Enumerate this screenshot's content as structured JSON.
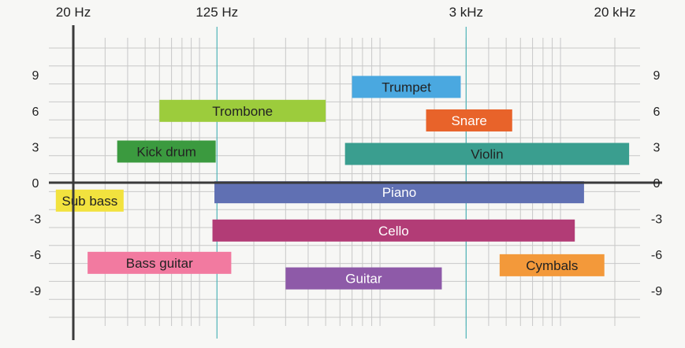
{
  "chart_data": {
    "type": "bar",
    "orientation": "horizontal-range",
    "x_scale": "log",
    "x_ticks": [
      {
        "value": 20,
        "label": "20 Hz"
      },
      {
        "value": 125,
        "label": "125 Hz"
      },
      {
        "value": 3000,
        "label": "3 kHz"
      },
      {
        "value": 20000,
        "label": "20 kHz"
      }
    ],
    "y_ticks": [
      {
        "value": 9,
        "label": "9"
      },
      {
        "value": 6,
        "label": "6"
      },
      {
        "value": 3,
        "label": "3"
      },
      {
        "value": 0,
        "label": "0"
      },
      {
        "value": -3,
        "label": "-3"
      },
      {
        "value": -6,
        "label": "-6"
      },
      {
        "value": -9,
        "label": "-9"
      }
    ],
    "xlim": [
      14,
      40000
    ],
    "ylim": [
      -12,
      12
    ],
    "grid": true,
    "series": [
      {
        "name": "Trumpet",
        "x_range": [
          700,
          2800
        ],
        "y": 8,
        "color": "#4aa8e0",
        "text_color": "#222222"
      },
      {
        "name": "Trombone",
        "x_range": [
          60,
          500
        ],
        "y": 6,
        "color": "#9ccc3c",
        "text_color": "#222222"
      },
      {
        "name": "Snare",
        "x_range": [
          1800,
          5400
        ],
        "y": 5.2,
        "color": "#e8632a",
        "text_color": "#ffffff"
      },
      {
        "name": "Kick drum",
        "x_range": [
          35,
          123
        ],
        "y": 2.6,
        "color": "#3b9a3f",
        "text_color": "#222222"
      },
      {
        "name": "Violin",
        "x_range": [
          640,
          24000
        ],
        "y": 2.4,
        "color": "#3a9e8f",
        "text_color": "#222222"
      },
      {
        "name": "Sub bass",
        "x_range": [
          16,
          38
        ],
        "y": -1.5,
        "color": "#f2e23e",
        "text_color": "#222222"
      },
      {
        "name": "Piano",
        "x_range": [
          121,
          13500
        ],
        "y": -0.8,
        "color": "#6070b3",
        "text_color": "#ffffff"
      },
      {
        "name": "Cello",
        "x_range": [
          118,
          12000
        ],
        "y": -4,
        "color": "#b23c76",
        "text_color": "#ffffff"
      },
      {
        "name": "Bass guitar",
        "x_range": [
          24,
          150
        ],
        "y": -6.7,
        "color": "#f27aa0",
        "text_color": "#222222"
      },
      {
        "name": "Cymbals",
        "x_range": [
          4600,
          17500
        ],
        "y": -6.9,
        "color": "#f3993a",
        "text_color": "#222222"
      },
      {
        "name": "Guitar",
        "x_range": [
          300,
          2200
        ],
        "y": -8,
        "color": "#8e5aa8",
        "text_color": "#ffffff"
      }
    ],
    "colors": {
      "axis": "#3a3a3a",
      "grid": "#c8c8c8",
      "highlight_line": "#4fb4b8"
    }
  }
}
